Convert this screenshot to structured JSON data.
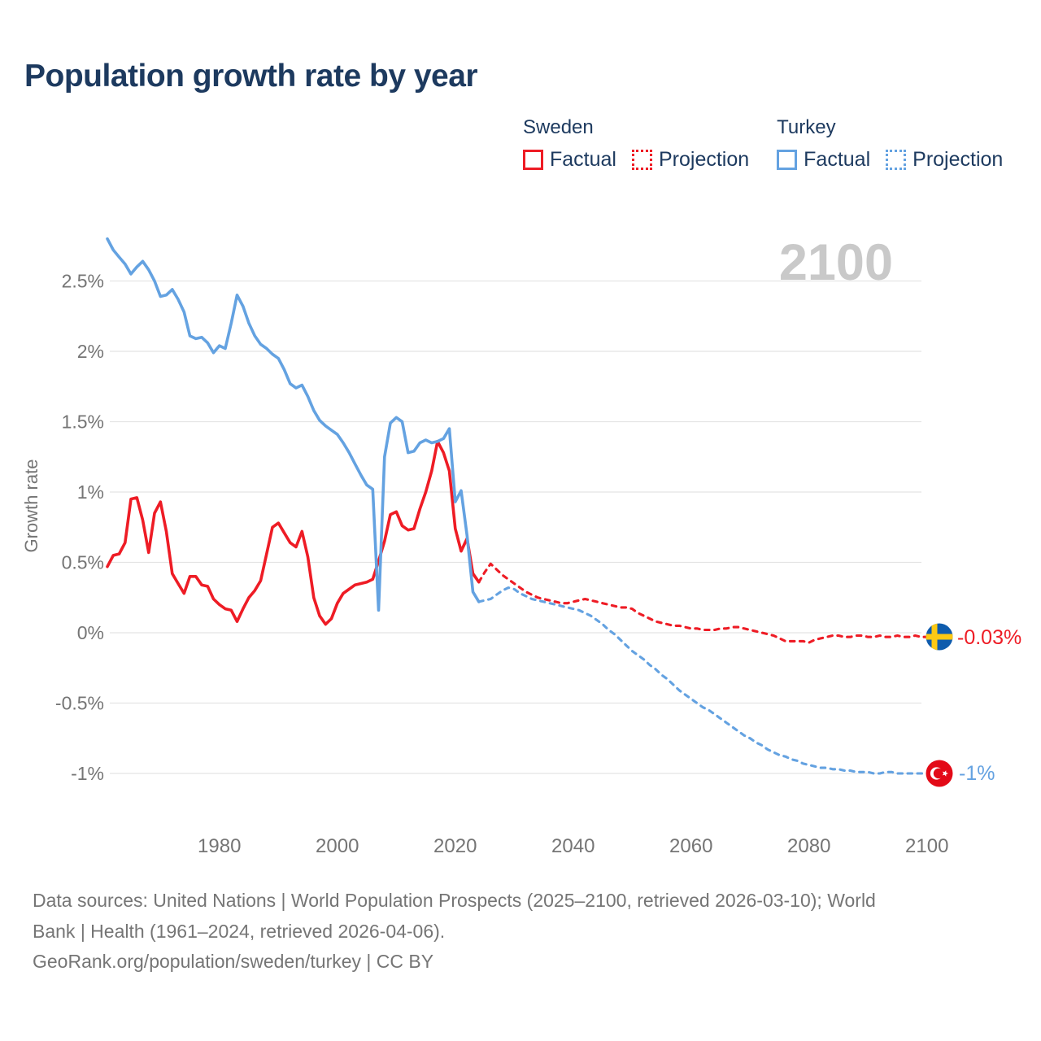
{
  "title": "Population growth rate by year",
  "watermark": "2100",
  "legend": {
    "sweden": {
      "label": "Sweden",
      "factual": "Factual",
      "projection": "Projection"
    },
    "turkey": {
      "label": "Turkey",
      "factual": "Factual",
      "projection": "Projection"
    }
  },
  "end_labels": {
    "sweden": "-0.03%",
    "turkey": "-1%"
  },
  "footer": {
    "line1": "Data sources: United Nations | World Population Prospects (2025–2100, retrieved 2026-03-10); World",
    "line2": "Bank | Health (1961–2024, retrieved 2026-04-06).",
    "line3": "GeoRank.org/population/sweden/turkey | CC BY"
  },
  "colors": {
    "sweden_line": "#ee1c25",
    "turkey_line": "#64a2e1",
    "title_text": "#1d3a5f",
    "axis_text": "#757575",
    "grid": "#e4e4e4",
    "watermark": "#c9c9c9",
    "sweden_flag_blue": "#0f5cad",
    "sweden_flag_yellow": "#fdc913",
    "turkey_flag_red": "#e30a17"
  },
  "chart_data": {
    "type": "line",
    "title": "Population growth rate by year",
    "xlabel": "",
    "ylabel": "Growth rate",
    "xlim": [
      1961,
      2113
    ],
    "ylim": [
      -1.4,
      2.95
    ],
    "grid": true,
    "legend_position": "top-right",
    "x_ticks": [
      1980,
      2000,
      2020,
      2040,
      2060,
      2080,
      2100
    ],
    "y_ticks": [
      {
        "value": 2.5,
        "label": "2.5%"
      },
      {
        "value": 2.0,
        "label": "2%"
      },
      {
        "value": 1.5,
        "label": "1.5%"
      },
      {
        "value": 1.0,
        "label": "1%"
      },
      {
        "value": 0.5,
        "label": "0.5%"
      },
      {
        "value": 0.0,
        "label": "0%"
      },
      {
        "value": -0.5,
        "label": "-0.5%"
      },
      {
        "value": -1.0,
        "label": "-1%"
      }
    ],
    "series": [
      {
        "name": "Sweden Factual",
        "country": "Sweden",
        "kind": "factual",
        "color": "#ee1c25",
        "style": "solid",
        "start_year": 1961,
        "values": [
          0.47,
          0.55,
          0.56,
          0.64,
          0.95,
          0.96,
          0.8,
          0.57,
          0.85,
          0.93,
          0.72,
          0.42,
          0.35,
          0.28,
          0.4,
          0.4,
          0.34,
          0.33,
          0.24,
          0.2,
          0.17,
          0.16,
          0.08,
          0.17,
          0.25,
          0.3,
          0.37,
          0.56,
          0.75,
          0.78,
          0.71,
          0.64,
          0.61,
          0.72,
          0.54,
          0.25,
          0.12,
          0.06,
          0.1,
          0.21,
          0.28,
          0.31,
          0.34,
          0.35,
          0.36,
          0.38,
          0.51,
          0.65,
          0.84,
          0.86,
          0.76,
          0.73,
          0.74,
          0.88,
          1.0,
          1.15,
          1.36,
          1.28,
          1.15,
          0.74,
          0.58,
          0.67,
          0.42,
          0.36
        ]
      },
      {
        "name": "Sweden Projection",
        "country": "Sweden",
        "kind": "projection",
        "color": "#ee1c25",
        "style": "dashed",
        "start_year": 2024,
        "values": [
          0.36,
          0.43,
          0.49,
          0.45,
          0.41,
          0.38,
          0.35,
          0.32,
          0.29,
          0.27,
          0.25,
          0.24,
          0.23,
          0.22,
          0.21,
          0.21,
          0.22,
          0.23,
          0.24,
          0.23,
          0.22,
          0.21,
          0.2,
          0.19,
          0.18,
          0.18,
          0.17,
          0.14,
          0.12,
          0.1,
          0.08,
          0.07,
          0.06,
          0.05,
          0.05,
          0.04,
          0.03,
          0.03,
          0.02,
          0.02,
          0.02,
          0.03,
          0.03,
          0.04,
          0.04,
          0.03,
          0.02,
          0.01,
          0.0,
          -0.01,
          -0.02,
          -0.04,
          -0.06,
          -0.06,
          -0.06,
          -0.06,
          -0.07,
          -0.05,
          -0.04,
          -0.03,
          -0.02,
          -0.02,
          -0.03,
          -0.03,
          -0.02,
          -0.02,
          -0.03,
          -0.03,
          -0.02,
          -0.03,
          -0.03,
          -0.02,
          -0.03,
          -0.03,
          -0.02,
          -0.03,
          -0.03
        ]
      },
      {
        "name": "Turkey Factual",
        "country": "Turkey",
        "kind": "factual",
        "color": "#64a2e1",
        "style": "solid",
        "start_year": 1961,
        "values": [
          2.8,
          2.72,
          2.67,
          2.62,
          2.55,
          2.6,
          2.64,
          2.58,
          2.5,
          2.39,
          2.4,
          2.44,
          2.37,
          2.28,
          2.11,
          2.09,
          2.1,
          2.06,
          1.99,
          2.04,
          2.02,
          2.2,
          2.4,
          2.32,
          2.2,
          2.11,
          2.05,
          2.02,
          1.98,
          1.95,
          1.87,
          1.77,
          1.74,
          1.76,
          1.68,
          1.58,
          1.51,
          1.47,
          1.44,
          1.41,
          1.35,
          1.28,
          1.2,
          1.12,
          1.05,
          1.02,
          0.16,
          1.25,
          1.49,
          1.53,
          1.5,
          1.28,
          1.29,
          1.35,
          1.37,
          1.35,
          1.36,
          1.38,
          1.45,
          0.93,
          1.01,
          0.69,
          0.29,
          0.22
        ]
      },
      {
        "name": "Turkey Projection",
        "country": "Turkey",
        "kind": "projection",
        "color": "#64a2e1",
        "style": "dashed",
        "start_year": 2024,
        "values": [
          0.22,
          0.23,
          0.24,
          0.27,
          0.3,
          0.32,
          0.31,
          0.28,
          0.26,
          0.24,
          0.23,
          0.22,
          0.21,
          0.2,
          0.19,
          0.18,
          0.17,
          0.16,
          0.14,
          0.12,
          0.09,
          0.06,
          0.02,
          -0.01,
          -0.05,
          -0.09,
          -0.13,
          -0.16,
          -0.19,
          -0.23,
          -0.26,
          -0.3,
          -0.33,
          -0.37,
          -0.41,
          -0.44,
          -0.47,
          -0.5,
          -0.53,
          -0.55,
          -0.58,
          -0.61,
          -0.64,
          -0.67,
          -0.7,
          -0.73,
          -0.75,
          -0.78,
          -0.8,
          -0.83,
          -0.85,
          -0.87,
          -0.88,
          -0.9,
          -0.91,
          -0.93,
          -0.94,
          -0.95,
          -0.96,
          -0.96,
          -0.97,
          -0.97,
          -0.98,
          -0.98,
          -0.99,
          -0.99,
          -0.99,
          -1.0,
          -1.0,
          -0.99,
          -0.99,
          -1.0,
          -1.0,
          -1.0,
          -1.0,
          -1.0,
          -1.0
        ]
      }
    ],
    "end_points": [
      {
        "country": "Sweden",
        "year": 2100,
        "value": -0.03,
        "label": "-0.03%"
      },
      {
        "country": "Turkey",
        "year": 2100,
        "value": -1.0,
        "label": "-1%"
      }
    ]
  }
}
